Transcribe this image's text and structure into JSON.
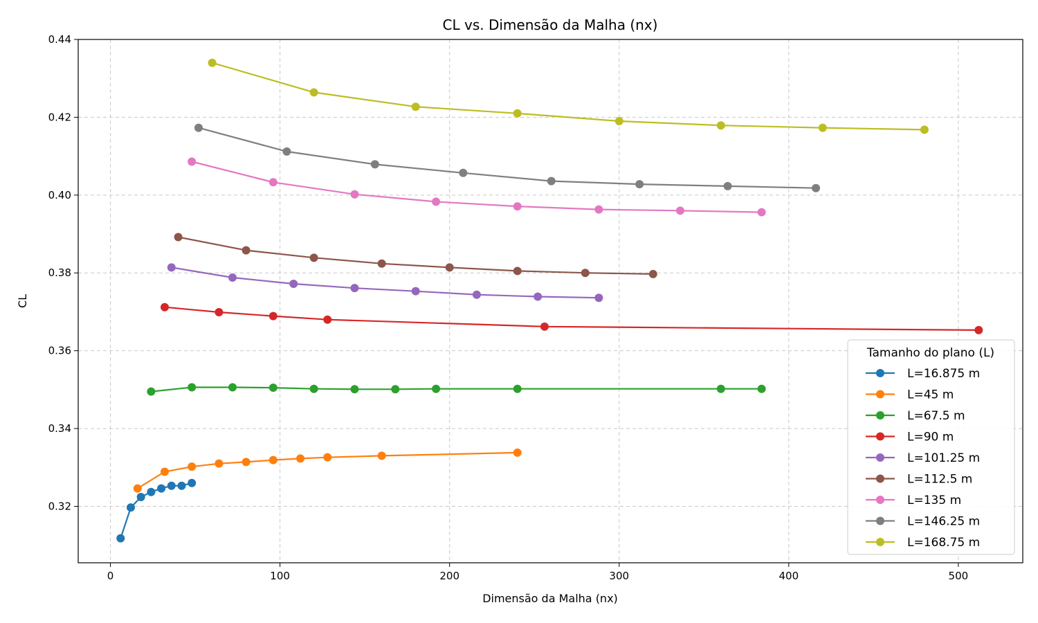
{
  "chart_data": {
    "type": "line",
    "title": "CL vs. Dimensão da Malha (nx)",
    "xlabel": "Dimensão da Malha (nx)",
    "ylabel": "CL",
    "xlim": [
      -19,
      538
    ],
    "ylim": [
      0.3055,
      0.44
    ],
    "xticks": [
      0,
      100,
      200,
      300,
      400,
      500
    ],
    "yticks": [
      0.32,
      0.34,
      0.36,
      0.38,
      0.4,
      0.42,
      0.44
    ],
    "ytick_labels": [
      "0.32",
      "0.34",
      "0.36",
      "0.38",
      "0.40",
      "0.42",
      "0.44"
    ],
    "grid": true,
    "legend": {
      "title": "Tamanho do plano (L)",
      "placement": "lower-right"
    },
    "series": [
      {
        "name": "L=16.875 m",
        "color": "#1f77b4",
        "x": [
          6,
          12,
          18,
          24,
          30,
          36,
          42,
          48
        ],
        "y": [
          0.3118,
          0.3197,
          0.3224,
          0.3237,
          0.3246,
          0.3253,
          0.3253,
          0.326
        ]
      },
      {
        "name": "L=45 m",
        "color": "#ff7f0e",
        "x": [
          16,
          32,
          48,
          64,
          80,
          96,
          112,
          128,
          160,
          240
        ],
        "y": [
          0.3246,
          0.3289,
          0.3302,
          0.331,
          0.3314,
          0.3319,
          0.3323,
          0.3326,
          0.333,
          0.3338
        ]
      },
      {
        "name": "L=67.5 m",
        "color": "#2ca02c",
        "x": [
          24,
          48,
          72,
          96,
          120,
          144,
          168,
          192,
          240,
          360,
          384
        ],
        "y": [
          0.3495,
          0.3506,
          0.3506,
          0.3505,
          0.3502,
          0.3501,
          0.3501,
          0.3502,
          0.3502,
          0.3502,
          0.3502
        ]
      },
      {
        "name": "L=90 m",
        "color": "#d62728",
        "x": [
          32,
          64,
          96,
          128,
          256,
          512
        ],
        "y": [
          0.3712,
          0.3699,
          0.3689,
          0.368,
          0.3662,
          0.3653
        ]
      },
      {
        "name": "L=101.25 m",
        "color": "#9467bd",
        "x": [
          36,
          72,
          108,
          144,
          180,
          216,
          252,
          288
        ],
        "y": [
          0.3814,
          0.3788,
          0.3772,
          0.3761,
          0.3753,
          0.3744,
          0.3739,
          0.3736
        ]
      },
      {
        "name": "L=112.5 m",
        "color": "#8c564b",
        "x": [
          40,
          80,
          120,
          160,
          200,
          240,
          280,
          320
        ],
        "y": [
          0.3892,
          0.3858,
          0.3839,
          0.3824,
          0.3814,
          0.3805,
          0.38,
          0.3797
        ]
      },
      {
        "name": "L=135 m",
        "color": "#e377c2",
        "x": [
          48,
          96,
          144,
          192,
          240,
          288,
          336,
          384
        ],
        "y": [
          0.4086,
          0.4033,
          0.4002,
          0.3983,
          0.3971,
          0.3963,
          0.396,
          0.3956
        ]
      },
      {
        "name": "L=146.25 m",
        "color": "#7f7f7f",
        "x": [
          52,
          104,
          156,
          208,
          260,
          312,
          364,
          416
        ],
        "y": [
          0.4173,
          0.4112,
          0.4079,
          0.4057,
          0.4036,
          0.4028,
          0.4023,
          0.4018
        ]
      },
      {
        "name": "L=168.75 m",
        "color": "#bcbd22",
        "x": [
          60,
          120,
          180,
          240,
          300,
          360,
          420,
          480
        ],
        "y": [
          0.434,
          0.4264,
          0.4227,
          0.421,
          0.419,
          0.4179,
          0.4173,
          0.4168
        ]
      }
    ]
  }
}
